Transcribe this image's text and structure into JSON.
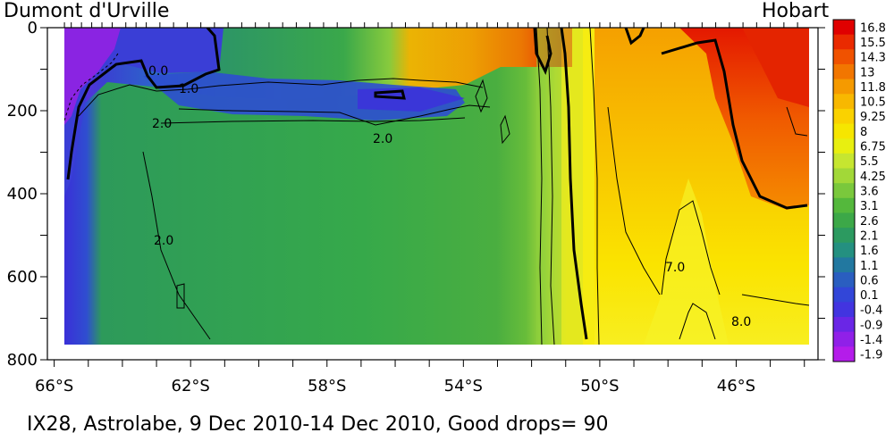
{
  "labels": {
    "left_station": "Dumont d'Urville",
    "right_station": "Hobart",
    "caption": "IX28, Astrolabe,  9 Dec 2010-14 Dec 2010, Good drops= 90"
  },
  "chart_data": {
    "type": "heatmap",
    "title": "",
    "xlabel": "",
    "ylabel": "",
    "x_ticks": [
      "66°S",
      "62°S",
      "58°S",
      "54°S",
      "50°S",
      "46°S"
    ],
    "x_tick_values": [
      -66,
      -62,
      -58,
      -54,
      -50,
      -46
    ],
    "x_minor_tick_values": [
      -66,
      -65,
      -64,
      -63,
      -62,
      -61,
      -60,
      -59,
      -58,
      -57,
      -56,
      -55,
      -54,
      -53,
      -52,
      -51,
      -50,
      -49,
      -48,
      -47,
      -46,
      -45,
      -44
    ],
    "xlim": [
      -66.2,
      -43.6
    ],
    "y_ticks": [
      "0",
      "200",
      "400",
      "600",
      "800"
    ],
    "y_tick_values": [
      0,
      200,
      400,
      600,
      800
    ],
    "y_minor_tick_values": [
      0,
      100,
      200,
      300,
      400,
      500,
      600,
      700,
      800
    ],
    "ylim": [
      800,
      0
    ],
    "y_inverted": true,
    "colorbar_levels": [
      "16.8",
      "15.5",
      "14.3",
      "13",
      "11.8",
      "10.5",
      "9.25",
      "8",
      "6.75",
      "5.5",
      "4.25",
      "3.6",
      "3.1",
      "2.6",
      "2.1",
      "1.6",
      "1.1",
      "0.6",
      "0.1",
      "-0.4",
      "-0.9",
      "-1.4",
      "-1.9"
    ],
    "colorbar_colors": [
      "#e00000",
      "#ea2a00",
      "#f05200",
      "#f27600",
      "#f59a00",
      "#f8b800",
      "#fad200",
      "#f6e600",
      "#e8ef10",
      "#c6e630",
      "#a2d838",
      "#7ac83c",
      "#54b83c",
      "#3ca848",
      "#2c9a60",
      "#249080",
      "#2278a0",
      "#2a5ec0",
      "#3246d8",
      "#4234e0",
      "#6a26e6",
      "#9020e8",
      "#b41cea"
    ],
    "contour_labels": [
      "0.0",
      "1.0",
      "2.0",
      "2.0",
      "2.0",
      "7.0",
      "8.0"
    ],
    "station_ticks_lat": [
      -65.7,
      -65.5,
      -65.2,
      -64.9,
      -64.6,
      -64.3,
      -63.9,
      -63.6,
      -63.3,
      -62.9,
      -62.5,
      -62.1,
      -61.7,
      -61.3,
      -60.9,
      -60.5,
      -60.1,
      -59.7,
      -59.3,
      -58.9,
      -58.5,
      -58.1,
      -57.7,
      -57.3,
      -56.9,
      -56.5,
      -56.1,
      -55.7,
      -55.3,
      -54.9,
      -54.5,
      -54.2,
      -53.9,
      -53.6,
      -53.3,
      -53.0,
      -52.7,
      -52.4,
      -52.1,
      -51.8,
      -51.5,
      -51.2,
      -50.9,
      -50.6,
      -50.3,
      -50.0,
      -49.7,
      -49.4,
      -49.0,
      -48.6,
      -48.2,
      -47.8,
      -47.4,
      -47.0,
      -46.6,
      -46.2,
      -45.8,
      -45.4,
      -45.0,
      -44.6,
      -44.2
    ]
  }
}
